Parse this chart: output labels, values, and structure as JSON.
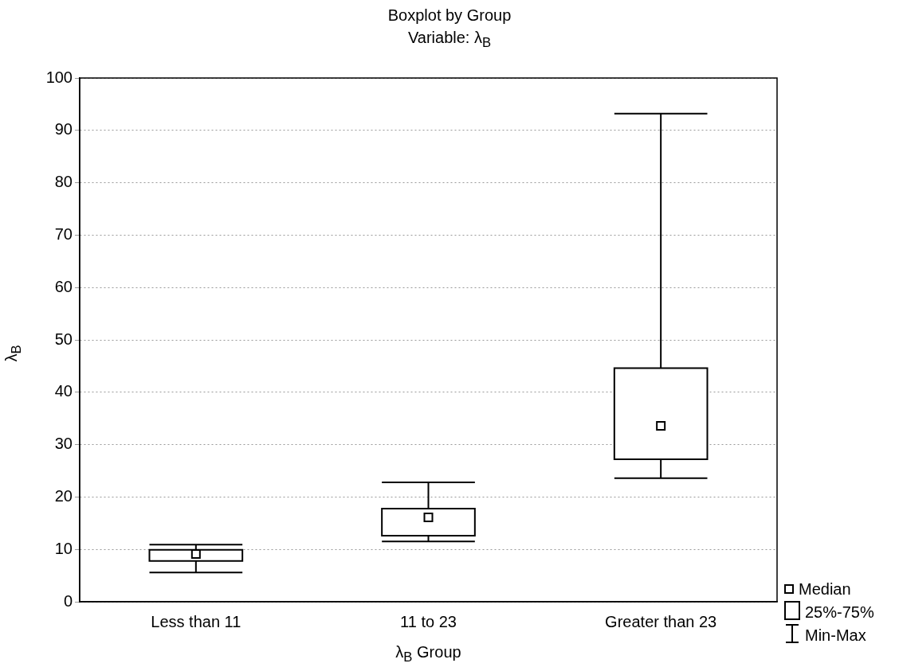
{
  "chart_data": {
    "type": "box",
    "title": "Boxplot by Group",
    "subtitle": "Variable: λ$_{B}$",
    "xlabel": "λ$_{B}$ Group",
    "ylabel": "λ$_{B}$",
    "categories": [
      "Less than 11",
      "11 to 23",
      "Greater than 23"
    ],
    "boxes": [
      {
        "low": 5.6,
        "q1": 7.8,
        "median": 9.1,
        "q3": 9.9,
        "high": 10.9
      },
      {
        "low": 11.5,
        "q1": 12.6,
        "median": 16.1,
        "q3": 17.8,
        "high": 22.8
      },
      {
        "low": 23.6,
        "q1": 27.2,
        "median": 33.6,
        "q3": 44.6,
        "high": 93.2
      }
    ],
    "ylim": [
      0,
      100
    ],
    "yticks": [
      0,
      10,
      20,
      30,
      40,
      50,
      60,
      70,
      80,
      90,
      100
    ],
    "grid": "y",
    "annotations": [
      "Median",
      "25%-75%",
      "Min-Max"
    ]
  }
}
